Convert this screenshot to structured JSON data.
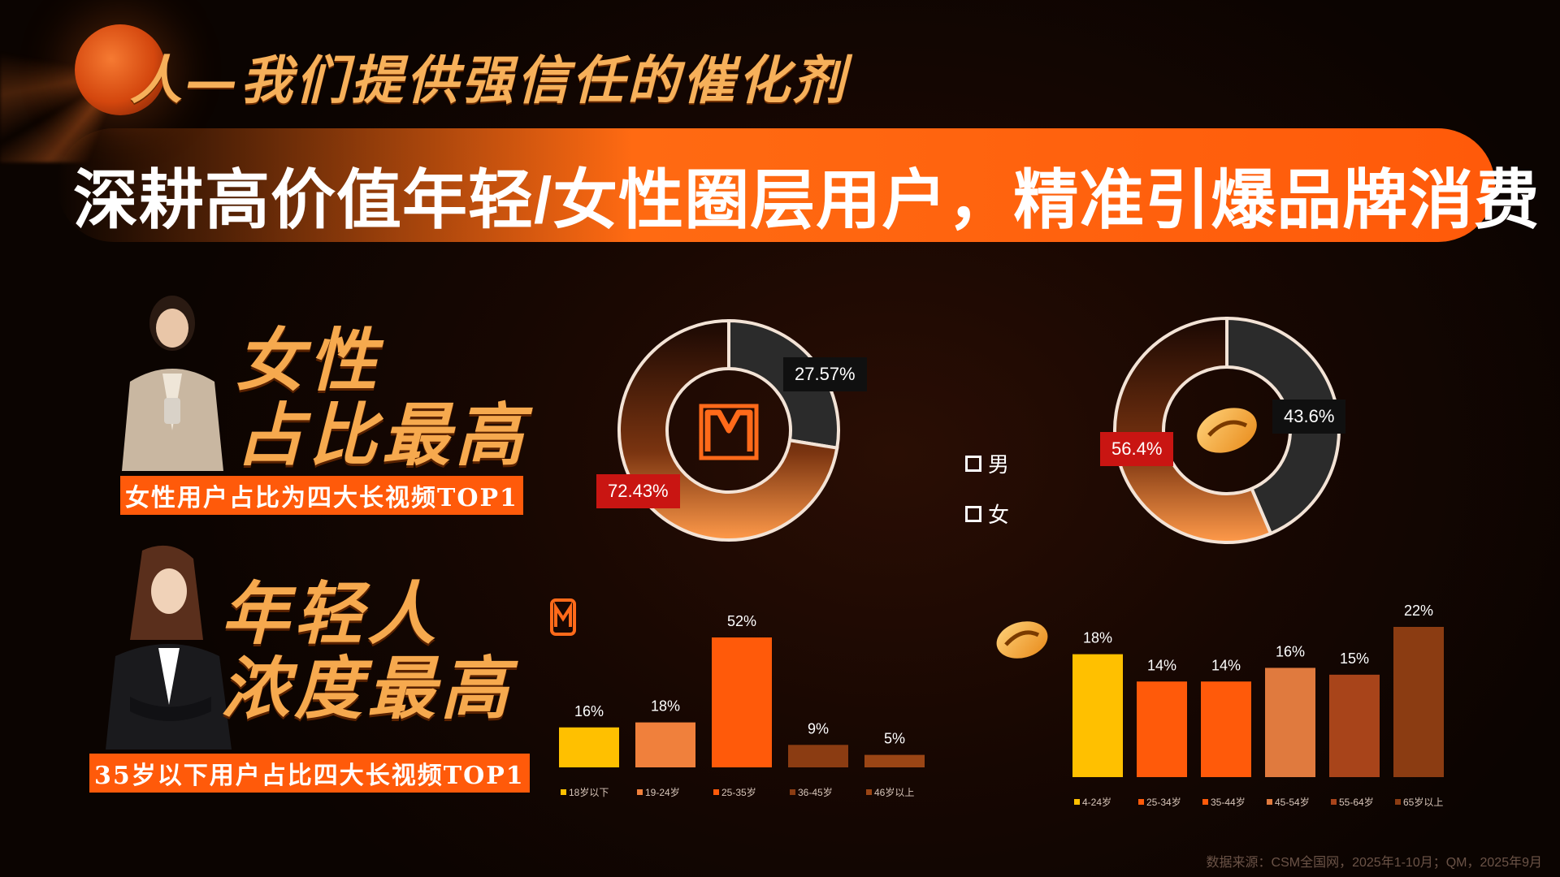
{
  "header": {
    "subtitle": "人—我们提供强信任的催化剂",
    "title": "深耕高价值年轻/女性圈层用户，精准引爆品牌消费"
  },
  "left": {
    "female_heading_line1": "女性",
    "female_heading_line2": "占比最高",
    "female_tag": "女性用户占比为四大长视频TOP1",
    "young_heading_line1": "年轻人",
    "young_heading_line2": "浓度最高",
    "young_tag": "35岁以下用户占比四大长视频TOP1"
  },
  "legend": {
    "male": "男",
    "female": "女"
  },
  "colors": {
    "accent": "#ff5a0a",
    "gold": "#ffc000",
    "dark_slice": "#2b2b2b",
    "red_label": "#c91512"
  },
  "footer": {
    "source": "数据来源：CSM全国网，2025年1-10月；QM，2025年9月"
  },
  "chart_data": [
    {
      "type": "pie",
      "variant": "donut",
      "logo": "mgtv-icon",
      "slices": [
        {
          "name": "男",
          "value": 27.57,
          "label": "27.57%"
        },
        {
          "name": "女",
          "value": 72.43,
          "label": "72.43%"
        }
      ]
    },
    {
      "type": "pie",
      "variant": "donut",
      "logo": "mango-logo-icon",
      "slices": [
        {
          "name": "男",
          "value": 43.6,
          "label": "43.6%"
        },
        {
          "name": "女",
          "value": 56.4,
          "label": "56.4%"
        }
      ]
    },
    {
      "type": "bar",
      "logo": "mgtv-icon",
      "categories": [
        "18岁以下",
        "19-24岁",
        "25-35岁",
        "36-45岁",
        "46岁以上"
      ],
      "values": [
        16,
        18,
        52,
        9,
        5
      ],
      "labels": [
        "16%",
        "18%",
        "52%",
        "9%",
        "5%"
      ],
      "colors": [
        "#ffc000",
        "#f0803c",
        "#ff5a0a",
        "#8b3c12",
        "#9a4515"
      ],
      "ylim": [
        0,
        52
      ]
    },
    {
      "type": "bar",
      "logo": "mango-logo-icon",
      "categories": [
        "4-24岁",
        "25-34岁",
        "35-44岁",
        "45-54岁",
        "55-64岁",
        "65岁以上"
      ],
      "values": [
        18,
        14,
        14,
        16,
        15,
        22
      ],
      "labels": [
        "18%",
        "14%",
        "14%",
        "16%",
        "15%",
        "22%"
      ],
      "colors": [
        "#ffc000",
        "#ff5a0a",
        "#ff5a0a",
        "#e07a3e",
        "#a8441a",
        "#8b3c12"
      ],
      "ylim": [
        0,
        22
      ]
    }
  ]
}
